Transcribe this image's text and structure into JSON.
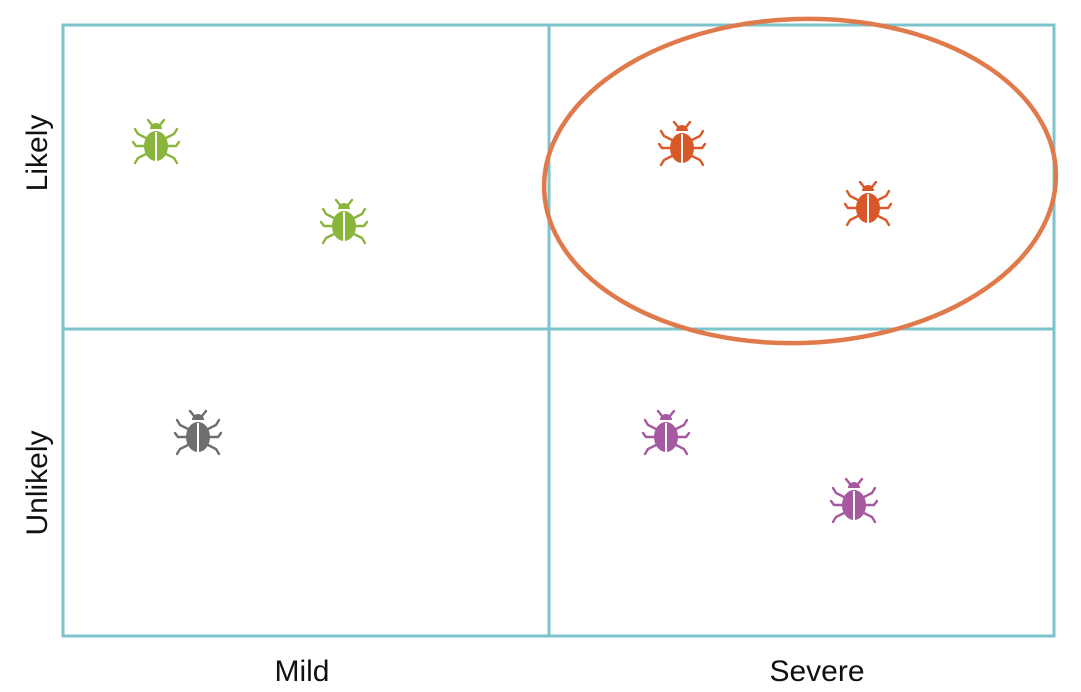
{
  "axes": {
    "y_top": "Likely",
    "y_bottom": "Unlikely",
    "x_left": "Mild",
    "x_right": "Severe"
  },
  "colors": {
    "grid": "#7cc3cc",
    "highlight": "#e07a4a",
    "green": "#8ab53c",
    "red": "#d9582a",
    "gray": "#6e6e6e",
    "purple": "#a658a0"
  },
  "bugs": [
    {
      "quadrant": "likely-mild",
      "color": "green",
      "icon": "bug-icon"
    },
    {
      "quadrant": "likely-mild",
      "color": "green",
      "icon": "bug-icon"
    },
    {
      "quadrant": "likely-severe",
      "color": "red",
      "icon": "bug-icon"
    },
    {
      "quadrant": "likely-severe",
      "color": "red",
      "icon": "bug-icon"
    },
    {
      "quadrant": "unlikely-mild",
      "color": "gray",
      "icon": "bug-icon"
    },
    {
      "quadrant": "unlikely-severe",
      "color": "purple",
      "icon": "bug-icon"
    },
    {
      "quadrant": "unlikely-severe",
      "color": "purple",
      "icon": "bug-icon"
    }
  ],
  "highlight": {
    "quadrant": "likely-severe"
  }
}
